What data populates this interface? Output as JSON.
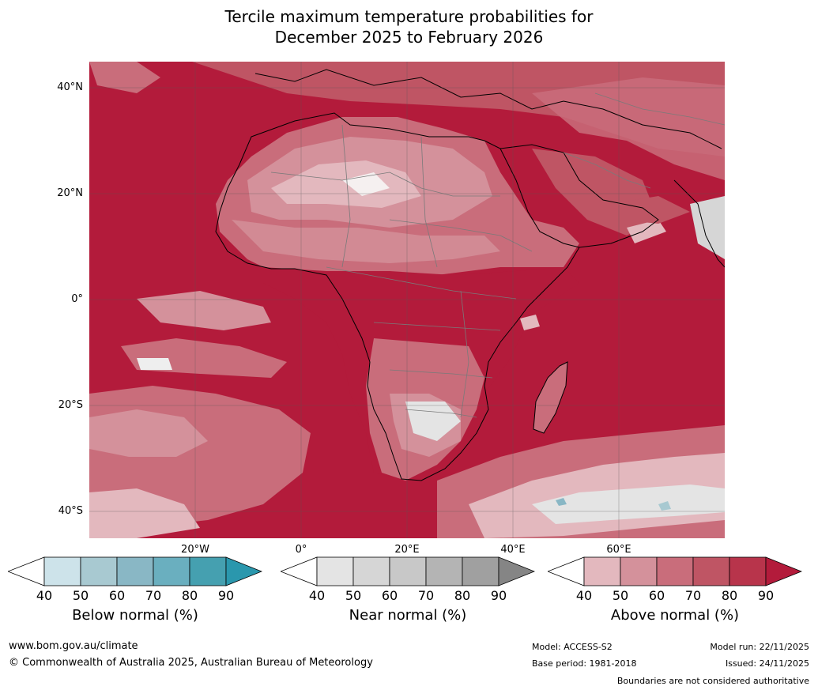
{
  "title": {
    "line1": "Tercile maximum temperature probabilities for",
    "line2": "December 2025 to February 2026"
  },
  "axes": {
    "lat_labels": [
      "40°N",
      "20°N",
      "0°",
      "20°S",
      "40°S"
    ],
    "lon_labels": [
      "20°W",
      "0°",
      "20°E",
      "40°E",
      "60°E"
    ]
  },
  "colorbars": [
    {
      "label": "Below normal (%)",
      "ticks": [
        "40",
        "50",
        "60",
        "70",
        "80",
        "90"
      ],
      "colors": [
        "#ffffff",
        "#cde3ea",
        "#a8c9d1",
        "#89b7c5",
        "#6aafbf",
        "#45a0b0",
        "#2a97ad"
      ]
    },
    {
      "label": "Near normal (%)",
      "ticks": [
        "40",
        "50",
        "60",
        "70",
        "80",
        "90"
      ],
      "colors": [
        "#ffffff",
        "#e4e4e4",
        "#d6d6d6",
        "#c8c8c8",
        "#b4b4b4",
        "#a0a0a0",
        "#858585"
      ]
    },
    {
      "label": "Above normal (%)",
      "ticks": [
        "40",
        "50",
        "60",
        "70",
        "80",
        "90"
      ],
      "colors": [
        "#ffffff",
        "#e3b8be",
        "#d4919b",
        "#c96d7b",
        "#bf5564",
        "#b8344b",
        "#b31b3b"
      ]
    }
  ],
  "footer": {
    "website": "www.bom.gov.au/climate",
    "copyright": "© Commonwealth of Australia 2025, Australian Bureau of Meteorology",
    "model": "Model: ACCESS-S2",
    "base_period": "Base period: 1981-2018",
    "model_run": "Model run: 22/11/2025",
    "issued": "Issued: 24/11/2025",
    "disclaimer": "Boundaries are not considered authoritative"
  }
}
